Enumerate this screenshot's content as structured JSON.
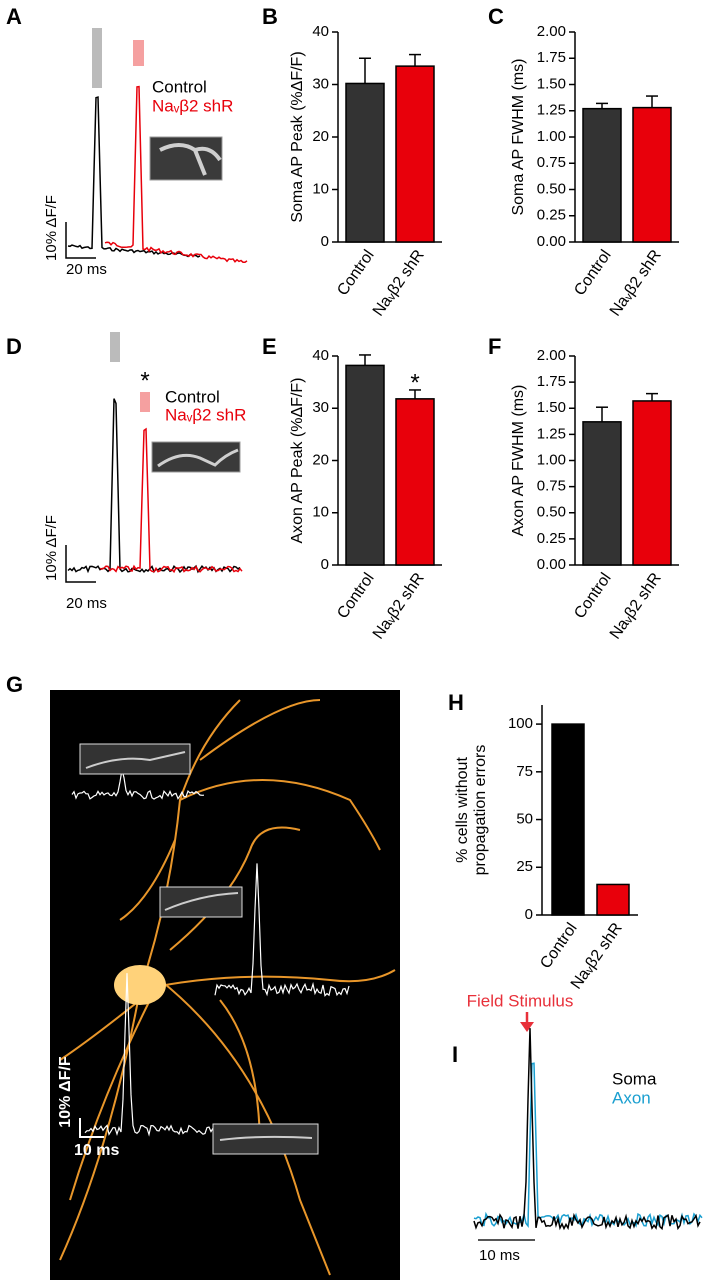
{
  "panel_labels": [
    "A",
    "B",
    "C",
    "D",
    "E",
    "F",
    "G",
    "H",
    "I"
  ],
  "chart_data": [
    {
      "type": "bar",
      "y_label": "Soma AP Peak (%ΔF/F)",
      "categories": [
        "Control",
        "Naᵥβ2 shR"
      ],
      "values": [
        30.2,
        33.5
      ],
      "errors": [
        4.8,
        2.2
      ],
      "colors": [
        "#333333",
        "#e8000b"
      ],
      "ylim": [
        0,
        40
      ],
      "yticks": [
        0,
        10,
        20,
        30,
        40
      ]
    },
    {
      "type": "bar",
      "y_label": "Soma AP FWHM (ms)",
      "categories": [
        "Control",
        "Naᵥβ2 shR"
      ],
      "values": [
        1.27,
        1.28
      ],
      "errors": [
        0.05,
        0.11
      ],
      "colors": [
        "#333333",
        "#e8000b"
      ],
      "ylim": [
        0,
        2
      ],
      "yticks": [
        {
          "value": 0,
          "label": "0.00"
        },
        {
          "value": 0.25,
          "label": "0.25"
        },
        {
          "value": 0.5,
          "label": "0.50"
        },
        {
          "value": 0.75,
          "label": "0.75"
        },
        {
          "value": 1,
          "label": "1.00"
        },
        {
          "value": 1.25,
          "label": "1.25"
        },
        {
          "value": 1.5,
          "label": "1.50"
        },
        {
          "value": 1.75,
          "label": "1.75"
        },
        {
          "value": 2,
          "label": "2.00"
        }
      ]
    },
    {
      "type": "bar",
      "y_label": "Axon AP Peak (%ΔF/F)",
      "categories": [
        "Control",
        "Naᵥβ2 shR"
      ],
      "values": [
        38.2,
        31.8
      ],
      "errors": [
        2.0,
        1.7
      ],
      "colors": [
        "#333333",
        "#e8000b"
      ],
      "ylim": [
        0,
        40
      ],
      "yticks": [
        0,
        10,
        20,
        30,
        40
      ],
      "annotation": {
        "text": "*",
        "category": 1
      }
    },
    {
      "type": "bar",
      "y_label": "Axon AP FWHM (ms)",
      "categories": [
        "Control",
        "Naᵥβ2 shR"
      ],
      "values": [
        1.37,
        1.57
      ],
      "errors": [
        0.14,
        0.07
      ],
      "colors": [
        "#333333",
        "#e8000b"
      ],
      "ylim": [
        0,
        2
      ],
      "yticks": [
        {
          "value": 0,
          "label": "0.00"
        },
        {
          "value": 0.25,
          "label": "0.25"
        },
        {
          "value": 0.5,
          "label": "0.50"
        },
        {
          "value": 0.75,
          "label": "0.75"
        },
        {
          "value": 1,
          "label": "1.00"
        },
        {
          "value": 1.25,
          "label": "1.25"
        },
        {
          "value": 1.5,
          "label": "1.50"
        },
        {
          "value": 1.75,
          "label": "1.75"
        },
        {
          "value": 2,
          "label": "2.00"
        }
      ]
    },
    {
      "type": "bar",
      "y_label": [
        "% cells without",
        "propagation errors"
      ],
      "categories": [
        "Control",
        "Naᵥβ2 shR"
      ],
      "values": [
        100,
        16
      ],
      "colors": [
        "#000000",
        "#e8000b"
      ],
      "ylim": [
        0,
        110
      ],
      "yticks": [
        0,
        25,
        50,
        75,
        100
      ]
    }
  ],
  "traces": {
    "A": {
      "legend": [
        "Control",
        "Naᵥβ2 shR"
      ],
      "scale_y": "10% ΔF/F",
      "scale_x": "20 ms"
    },
    "D": {
      "legend": [
        "Control",
        "Naᵥβ2 shR"
      ],
      "scale_y": "10% ΔF/F",
      "scale_x": "20 ms",
      "annotation": "*"
    },
    "G": {
      "scale_y": "10% ΔF/F",
      "scale_x": "10 ms"
    },
    "I": {
      "stimulus": "Field Stimulus",
      "legend": [
        "Soma",
        "Axon"
      ],
      "scale_x": "10 ms"
    }
  }
}
